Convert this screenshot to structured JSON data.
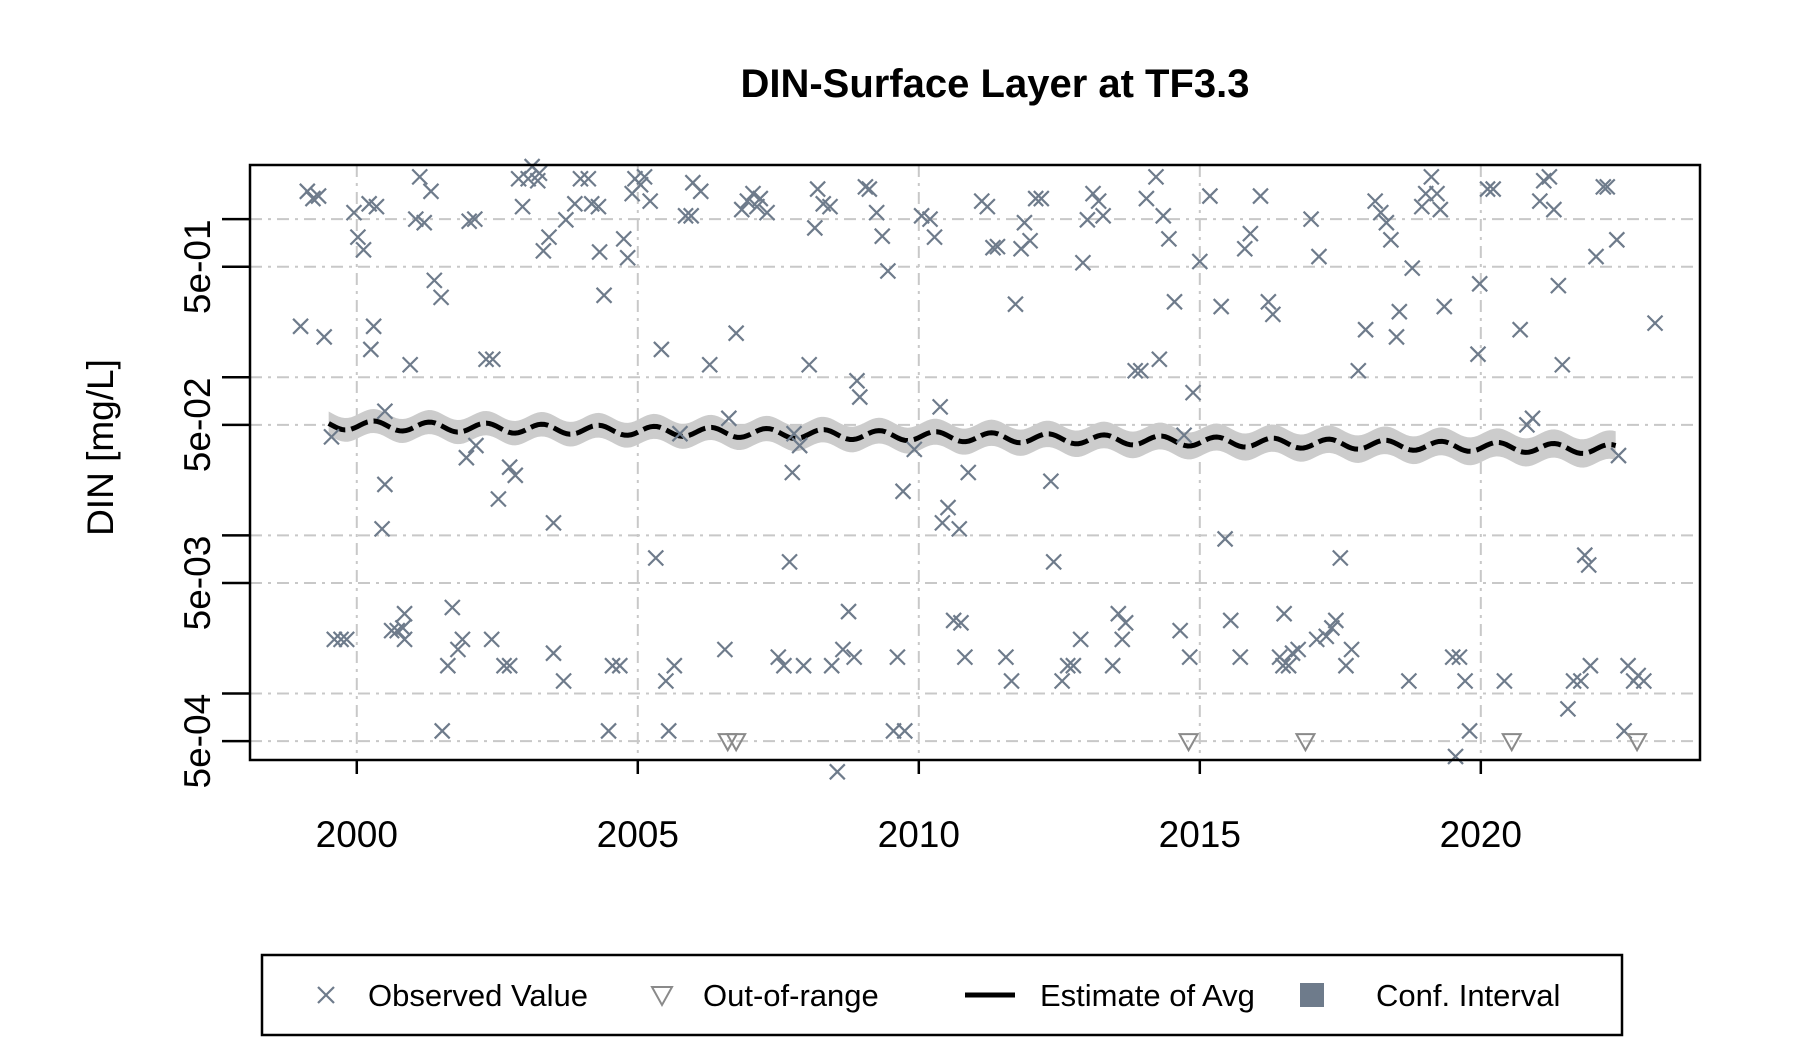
{
  "chart_data": {
    "type": "scatter",
    "title": "DIN-Surface Layer at TF3.3",
    "xlabel": "",
    "ylabel": "DIN [mg/L]",
    "x_scale": "linear",
    "y_scale": "log",
    "xlim": [
      1998.1,
      2023.9
    ],
    "ylim": [
      0.00038,
      2.2
    ],
    "x_ticks": [
      2000,
      2005,
      2010,
      2015,
      2020
    ],
    "x_tick_labels": [
      "2000",
      "2005",
      "2010",
      "2015",
      "2020"
    ],
    "y_ticks": [
      0.0005,
      0.005,
      0.05,
      0.5
    ],
    "y_tick_labels": [
      "5e-04",
      "5e-03",
      "5e-02",
      "5e-01"
    ],
    "y_minor_ticks": [
      0.001,
      0.01,
      0.1,
      1
    ],
    "grid": true,
    "legend_position": "bottom",
    "legend": [
      {
        "label": "Observed Value",
        "symbol": "x"
      },
      {
        "label": "Out-of-range",
        "symbol": "triangle-down"
      },
      {
        "label": "Estimate of Avg",
        "symbol": "line"
      },
      {
        "label": "Conf. Interval",
        "symbol": "square"
      }
    ],
    "colors": {
      "observed": "#6e7b8b",
      "out_of_range": "#8a8a8a",
      "estimate": "#000000",
      "conf_band": "#cccccc",
      "conf_legend": "#6e7b8b",
      "grid": "#c8c8c8"
    },
    "series": [
      {
        "name": "Observed Value",
        "kind": "scatter",
        "points": [
          [
            1999.0,
            0.21
          ],
          [
            1999.12,
            1.5
          ],
          [
            1999.22,
            1.35
          ],
          [
            1999.32,
            1.4
          ],
          [
            1999.42,
            0.18
          ],
          [
            1999.55,
            0.042
          ],
          [
            1999.6,
            0.0022
          ],
          [
            1999.72,
            0.0022
          ],
          [
            1999.82,
            0.0022
          ],
          [
            1999.95,
            1.1
          ],
          [
            2000.02,
            0.77
          ],
          [
            2000.12,
            0.64
          ],
          [
            2000.22,
            1.25
          ],
          [
            2000.35,
            1.2
          ],
          [
            2000.25,
            0.15
          ],
          [
            2000.3,
            0.21
          ],
          [
            2000.45,
            0.011
          ],
          [
            2000.5,
            0.061
          ],
          [
            2000.5,
            0.021
          ],
          [
            2000.62,
            0.0025
          ],
          [
            2000.72,
            0.0025
          ],
          [
            2000.82,
            0.0026
          ],
          [
            2000.85,
            0.0032
          ],
          [
            2000.85,
            0.0022
          ],
          [
            2000.95,
            0.12
          ],
          [
            2001.05,
            1.0
          ],
          [
            2001.12,
            1.85
          ],
          [
            2001.2,
            0.95
          ],
          [
            2001.32,
            1.5
          ],
          [
            2001.38,
            0.41
          ],
          [
            2001.5,
            0.32
          ],
          [
            2001.52,
            0.00058
          ],
          [
            2001.62,
            0.0015
          ],
          [
            2001.7,
            0.0035
          ],
          [
            2001.8,
            0.0019
          ],
          [
            2001.88,
            0.0022
          ],
          [
            2001.95,
            0.031
          ],
          [
            2002.0,
            0.97
          ],
          [
            2002.1,
            1.0
          ],
          [
            2002.12,
            0.037
          ],
          [
            2002.3,
            0.13
          ],
          [
            2002.42,
            0.13
          ],
          [
            2002.4,
            0.0022
          ],
          [
            2002.52,
            0.017
          ],
          [
            2002.62,
            0.0015
          ],
          [
            2002.72,
            0.0015
          ],
          [
            2002.72,
            0.027
          ],
          [
            2002.82,
            0.024
          ],
          [
            2002.88,
            1.8
          ],
          [
            2002.95,
            1.2
          ],
          [
            2003.05,
            1.8
          ],
          [
            2003.12,
            2.15
          ],
          [
            2003.22,
            1.75
          ],
          [
            2003.25,
            1.95
          ],
          [
            2003.32,
            0.63
          ],
          [
            2003.42,
            0.77
          ],
          [
            2003.5,
            0.012
          ],
          [
            2003.5,
            0.0018
          ],
          [
            2003.68,
            0.0012
          ],
          [
            2003.72,
            0.99
          ],
          [
            2003.88,
            1.25
          ],
          [
            2003.98,
            1.8
          ],
          [
            2004.12,
            1.8
          ],
          [
            2004.18,
            1.25
          ],
          [
            2004.3,
            1.2
          ],
          [
            2004.32,
            0.62
          ],
          [
            2004.4,
            0.33
          ],
          [
            2004.48,
            0.00058
          ],
          [
            2004.55,
            0.0015
          ],
          [
            2004.68,
            0.0015
          ],
          [
            2004.75,
            0.75
          ],
          [
            2004.82,
            0.57
          ],
          [
            2004.9,
            1.45
          ],
          [
            2004.95,
            1.8
          ],
          [
            2005.05,
            1.65
          ],
          [
            2005.12,
            1.85
          ],
          [
            2005.22,
            1.3
          ],
          [
            2005.32,
            0.0072
          ],
          [
            2005.42,
            0.15
          ],
          [
            2005.5,
            0.0012
          ],
          [
            2005.55,
            0.00058
          ],
          [
            2005.65,
            0.0015
          ],
          [
            2005.75,
            0.044
          ],
          [
            2005.85,
            1.05
          ],
          [
            2005.95,
            1.05
          ],
          [
            2005.98,
            1.7
          ],
          [
            2006.12,
            1.5
          ],
          [
            2006.28,
            0.12
          ],
          [
            2006.55,
            0.0019
          ],
          [
            2006.62,
            0.055
          ],
          [
            2006.75,
            0.19
          ],
          [
            2006.85,
            1.15
          ],
          [
            2006.95,
            1.3
          ],
          [
            2007.05,
            1.45
          ],
          [
            2007.12,
            1.2
          ],
          [
            2007.18,
            1.35
          ],
          [
            2007.3,
            1.1
          ],
          [
            2007.5,
            0.0017
          ],
          [
            2007.6,
            0.0015
          ],
          [
            2007.7,
            0.0068
          ],
          [
            2007.78,
            0.044
          ],
          [
            2007.75,
            0.025
          ],
          [
            2007.88,
            0.037
          ],
          [
            2007.95,
            0.0015
          ],
          [
            2008.05,
            0.12
          ],
          [
            2008.15,
            0.88
          ],
          [
            2008.2,
            1.55
          ],
          [
            2008.3,
            1.25
          ],
          [
            2008.42,
            1.2
          ],
          [
            2008.45,
            0.0015
          ],
          [
            2008.55,
            0.00032
          ],
          [
            2008.65,
            0.0019
          ],
          [
            2008.75,
            0.0033
          ],
          [
            2008.85,
            0.0017
          ],
          [
            2008.9,
            0.095
          ],
          [
            2008.95,
            0.075
          ],
          [
            2009.05,
            1.6
          ],
          [
            2009.12,
            1.55
          ],
          [
            2009.25,
            1.1
          ],
          [
            2009.35,
            0.78
          ],
          [
            2009.45,
            0.47
          ],
          [
            2009.55,
            0.00058
          ],
          [
            2009.62,
            0.0017
          ],
          [
            2009.72,
            0.019
          ],
          [
            2009.75,
            0.00058
          ],
          [
            2009.92,
            0.035
          ],
          [
            2010.05,
            1.05
          ],
          [
            2010.2,
            1.0
          ],
          [
            2010.28,
            0.77
          ],
          [
            2010.38,
            0.065
          ],
          [
            2010.42,
            0.012
          ],
          [
            2010.52,
            0.015
          ],
          [
            2010.62,
            0.0029
          ],
          [
            2010.72,
            0.011
          ],
          [
            2010.75,
            0.0028
          ],
          [
            2010.82,
            0.0017
          ],
          [
            2010.88,
            0.025
          ],
          [
            2011.12,
            1.3
          ],
          [
            2011.22,
            1.2
          ],
          [
            2011.32,
            0.66
          ],
          [
            2011.4,
            0.67
          ],
          [
            2011.55,
            0.0017
          ],
          [
            2011.65,
            0.0012
          ],
          [
            2011.72,
            0.29
          ],
          [
            2011.82,
            0.65
          ],
          [
            2011.88,
            0.95
          ],
          [
            2011.98,
            0.73
          ],
          [
            2012.08,
            1.35
          ],
          [
            2012.18,
            1.35
          ],
          [
            2012.35,
            0.022
          ],
          [
            2012.4,
            0.0068
          ],
          [
            2012.55,
            0.0012
          ],
          [
            2012.65,
            0.0015
          ],
          [
            2012.75,
            0.0015
          ],
          [
            2012.88,
            0.0022
          ],
          [
            2012.92,
            0.53
          ],
          [
            2013.0,
            0.99
          ],
          [
            2013.1,
            1.45
          ],
          [
            2013.2,
            1.3
          ],
          [
            2013.28,
            1.05
          ],
          [
            2013.45,
            0.0015
          ],
          [
            2013.55,
            0.0032
          ],
          [
            2013.62,
            0.0022
          ],
          [
            2013.68,
            0.0028
          ],
          [
            2013.85,
            0.11
          ],
          [
            2013.95,
            0.11
          ],
          [
            2014.05,
            1.35
          ],
          [
            2014.22,
            1.85
          ],
          [
            2014.28,
            0.13
          ],
          [
            2014.35,
            1.05
          ],
          [
            2014.45,
            0.75
          ],
          [
            2014.55,
            0.3
          ],
          [
            2014.65,
            0.0025
          ],
          [
            2014.72,
            0.043
          ],
          [
            2014.82,
            0.0017
          ],
          [
            2014.88,
            0.08
          ],
          [
            2015.0,
            0.54
          ],
          [
            2015.18,
            1.4
          ],
          [
            2015.38,
            0.28
          ],
          [
            2015.45,
            0.0095
          ],
          [
            2015.55,
            0.0029
          ],
          [
            2015.72,
            0.0017
          ],
          [
            2015.8,
            0.65
          ],
          [
            2015.9,
            0.81
          ],
          [
            2016.08,
            1.4
          ],
          [
            2016.22,
            0.3
          ],
          [
            2016.3,
            0.25
          ],
          [
            2016.42,
            0.0017
          ],
          [
            2016.48,
            0.0015
          ],
          [
            2016.5,
            0.0032
          ],
          [
            2016.58,
            0.0015
          ],
          [
            2016.65,
            0.0018
          ],
          [
            2016.75,
            0.0019
          ],
          [
            2016.98,
            1.0
          ],
          [
            2017.08,
            0.0022
          ],
          [
            2017.12,
            0.58
          ],
          [
            2017.25,
            0.0023
          ],
          [
            2017.35,
            0.0026
          ],
          [
            2017.42,
            0.0029
          ],
          [
            2017.5,
            0.0072
          ],
          [
            2017.6,
            0.0015
          ],
          [
            2017.7,
            0.0019
          ],
          [
            2017.82,
            0.11
          ],
          [
            2017.95,
            0.2
          ],
          [
            2018.12,
            1.3
          ],
          [
            2018.22,
            1.1
          ],
          [
            2018.32,
            0.95
          ],
          [
            2018.4,
            0.74
          ],
          [
            2018.5,
            0.18
          ],
          [
            2018.55,
            0.26
          ],
          [
            2018.72,
            0.0012
          ],
          [
            2018.78,
            0.49
          ],
          [
            2018.95,
            1.2
          ],
          [
            2019.02,
            1.45
          ],
          [
            2019.12,
            1.85
          ],
          [
            2019.22,
            1.45
          ],
          [
            2019.28,
            1.15
          ],
          [
            2019.35,
            0.28
          ],
          [
            2019.5,
            0.0017
          ],
          [
            2019.55,
            0.0004
          ],
          [
            2019.62,
            0.0017
          ],
          [
            2019.72,
            0.0012
          ],
          [
            2019.8,
            0.00058
          ],
          [
            2019.95,
            0.14
          ],
          [
            2019.98,
            0.39
          ],
          [
            2020.12,
            1.55
          ],
          [
            2020.22,
            1.55
          ],
          [
            2020.42,
            0.0012
          ],
          [
            2020.7,
            0.2
          ],
          [
            2020.82,
            0.05
          ],
          [
            2020.92,
            0.055
          ],
          [
            2021.05,
            1.3
          ],
          [
            2021.12,
            1.75
          ],
          [
            2021.22,
            1.85
          ],
          [
            2021.3,
            1.15
          ],
          [
            2021.38,
            0.38
          ],
          [
            2021.45,
            0.12
          ],
          [
            2021.55,
            0.0008
          ],
          [
            2021.65,
            0.0012
          ],
          [
            2021.78,
            0.0012
          ],
          [
            2021.85,
            0.0075
          ],
          [
            2021.92,
            0.0065
          ],
          [
            2021.95,
            0.0015
          ],
          [
            2022.05,
            0.58
          ],
          [
            2022.18,
            1.6
          ],
          [
            2022.25,
            1.6
          ],
          [
            2022.42,
            0.74
          ],
          [
            2022.55,
            0.00058
          ],
          [
            2022.62,
            0.0015
          ],
          [
            2022.72,
            0.0012
          ],
          [
            2022.8,
            0.0013
          ],
          [
            2022.9,
            0.0012
          ],
          [
            2023.1,
            0.22
          ],
          [
            2022.45,
            0.032
          ]
        ]
      },
      {
        "name": "Out-of-range",
        "kind": "scatter",
        "points": [
          [
            2006.6,
            0.0005
          ],
          [
            2006.75,
            0.0005
          ],
          [
            2014.8,
            0.0005
          ],
          [
            2016.88,
            0.0005
          ],
          [
            2020.55,
            0.0005
          ],
          [
            2022.78,
            0.0005
          ]
        ]
      },
      {
        "name": "Estimate of Avg",
        "kind": "line",
        "start": 1999.5,
        "end": 2022.4,
        "y_start": 0.05,
        "y_end": 0.035,
        "seasonal_amplitude": 0.03
      },
      {
        "name": "Conf. Interval",
        "kind": "band",
        "log_half_width_start": 0.075,
        "log_half_width_end": 0.09
      }
    ]
  }
}
